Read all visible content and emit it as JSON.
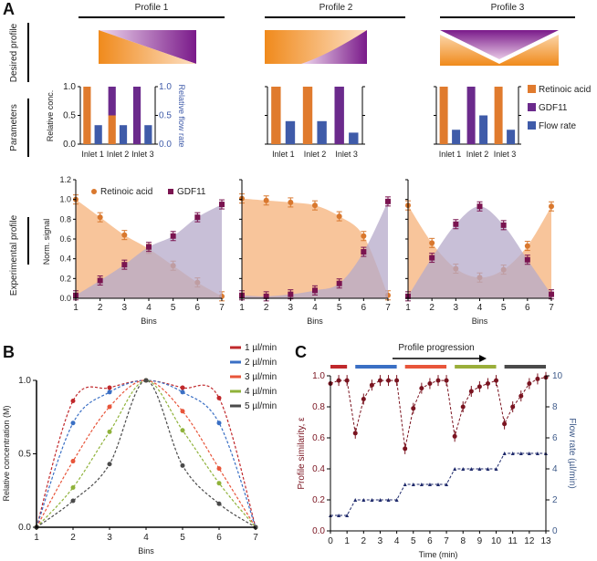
{
  "panel_labels": [
    "A",
    "B",
    "C"
  ],
  "panelA": {
    "row_labels": [
      "Desired profile",
      "Parameters",
      "Experimental profile"
    ],
    "profile_titles": [
      "Profile 1",
      "Profile 2",
      "Profile 3"
    ],
    "colors": {
      "retinoic_acid": "#e07b2e",
      "gdf11": "#6b2a8c",
      "flow_rate": "#3f5ba9",
      "ra_fill": "#f5b27a",
      "gdf_fill": "#b6a9c9",
      "ra_marker": "#d9782e",
      "gdf_marker": "#7a1450"
    }
  },
  "chart_data": [
    {
      "type": "bar",
      "name": "parameters",
      "ylabel": "Relative conc.",
      "y2label": "Relative flow rate",
      "ylim": [
        0,
        1
      ],
      "yticks": [
        "0.0",
        "0.5",
        "1.0"
      ],
      "categories": [
        "Inlet 1",
        "Inlet 2",
        "Inlet 3"
      ],
      "legend": [
        "Retinoic acid",
        "GDF11",
        "Flow rate"
      ],
      "legend_position": "right",
      "profiles": [
        {
          "retinoic_acid": [
            1,
            0.5,
            0
          ],
          "gdf11": [
            0,
            0.5,
            1
          ],
          "flow_rate": [
            0.33,
            0.33,
            0.33
          ]
        },
        {
          "retinoic_acid": [
            1,
            1,
            0
          ],
          "gdf11": [
            0,
            0,
            1
          ],
          "flow_rate": [
            0.4,
            0.4,
            0.2
          ]
        },
        {
          "retinoic_acid": [
            1,
            0,
            1
          ],
          "gdf11": [
            0,
            1,
            0
          ],
          "flow_rate": [
            0.25,
            0.5,
            0.25
          ]
        }
      ]
    },
    {
      "type": "area",
      "name": "experimental-profile",
      "xlabel": "Bins",
      "ylabel": "Norm. signal",
      "ylim": [
        0,
        1.2
      ],
      "yticks": [
        "0.0",
        "0.2",
        "0.4",
        "0.6",
        "0.8",
        "1.0",
        "1.2"
      ],
      "x": [
        1,
        2,
        3,
        4,
        5,
        6,
        7
      ],
      "legend": [
        "Retinoic acid",
        "GDF11"
      ],
      "legend_position": "top-left",
      "profiles": [
        {
          "retinoic_acid": [
            1.0,
            0.82,
            0.64,
            0.5,
            0.33,
            0.16,
            0.02
          ],
          "gdf11": [
            0.03,
            0.18,
            0.34,
            0.52,
            0.63,
            0.82,
            0.95
          ]
        },
        {
          "retinoic_acid": [
            1.01,
            0.99,
            0.97,
            0.94,
            0.83,
            0.63,
            0.03
          ],
          "gdf11": [
            0.03,
            0.02,
            0.04,
            0.08,
            0.15,
            0.47,
            0.98
          ]
        },
        {
          "retinoic_acid": [
            0.94,
            0.56,
            0.3,
            0.21,
            0.29,
            0.53,
            0.93
          ],
          "gdf11": [
            0.02,
            0.41,
            0.75,
            0.93,
            0.74,
            0.39,
            0.04
          ]
        }
      ]
    },
    {
      "type": "line",
      "name": "panel-b",
      "xlabel": "Bins",
      "ylabel": "Relative concentration (M)",
      "xlim": [
        1,
        7
      ],
      "ylim": [
        0,
        1
      ],
      "yticks": [
        "0.0",
        "0.5",
        "1.0"
      ],
      "x": [
        1,
        2,
        3,
        4,
        5,
        6,
        7
      ],
      "legend_position": "top-right",
      "series": [
        {
          "name": "1 µl/min",
          "color": "#c0282b",
          "values": [
            0,
            0.86,
            0.95,
            1,
            0.95,
            0.88,
            0
          ]
        },
        {
          "name": "2 µl/min",
          "color": "#3a6fc4",
          "values": [
            0,
            0.71,
            0.92,
            1,
            0.92,
            0.71,
            0
          ]
        },
        {
          "name": "3 µl/min",
          "color": "#e8553a",
          "values": [
            0,
            0.45,
            0.82,
            1,
            0.79,
            0.4,
            0
          ]
        },
        {
          "name": "4 µl/min",
          "color": "#8fb23a",
          "values": [
            0,
            0.27,
            0.65,
            1,
            0.66,
            0.3,
            0
          ]
        },
        {
          "name": "5 µl/min",
          "color": "#4a4a4a",
          "values": [
            0,
            0.18,
            0.43,
            1,
            0.42,
            0.16,
            0
          ]
        }
      ]
    },
    {
      "type": "line",
      "name": "panel-c",
      "title": "Profile progression",
      "xlabel": "Time (min)",
      "ylabel": "Profile similarity, ε",
      "y2label": "Flow rate (µl/min)",
      "xlim": [
        0,
        13
      ],
      "ylim": [
        0,
        1
      ],
      "y2lim": [
        0,
        10
      ],
      "xticks": [
        "0",
        "1",
        "2",
        "3",
        "4",
        "5",
        "6",
        "7",
        "8",
        "9",
        "10",
        "11",
        "12",
        "13"
      ],
      "yticks": [
        "0.0",
        "0.2",
        "0.4",
        "0.6",
        "0.8",
        "1.0"
      ],
      "y2ticks": [
        "0",
        "2",
        "4",
        "6",
        "8",
        "10"
      ],
      "x": [
        0,
        0.5,
        1,
        1.5,
        2,
        2.5,
        3,
        3.5,
        4,
        4.5,
        5,
        5.5,
        6,
        6.5,
        7,
        7.5,
        8,
        8.5,
        9,
        9.5,
        10,
        10.5,
        11,
        11.5,
        12,
        12.5,
        13
      ],
      "similarity": [
        0.95,
        0.97,
        0.97,
        0.63,
        0.85,
        0.94,
        0.97,
        0.97,
        0.97,
        0.53,
        0.79,
        0.92,
        0.95,
        0.97,
        0.97,
        0.61,
        0.8,
        0.9,
        0.93,
        0.95,
        0.97,
        0.69,
        0.8,
        0.87,
        0.95,
        0.98,
        0.99
      ],
      "flow_rate": [
        1,
        1,
        1,
        2,
        2,
        2,
        2,
        2,
        2,
        3,
        3,
        3,
        3,
        3,
        3,
        4,
        4,
        4,
        4,
        4,
        4,
        5,
        5,
        5,
        5,
        5,
        5
      ],
      "similarity_color": "#7a1420",
      "flow_color": "#1f2a6b",
      "phase_bars": [
        {
          "start": 0,
          "end": 1,
          "color": "#c0282b"
        },
        {
          "start": 1.5,
          "end": 4,
          "color": "#3a6fc4"
        },
        {
          "start": 4.5,
          "end": 7,
          "color": "#e8553a"
        },
        {
          "start": 7.5,
          "end": 10,
          "color": "#9aae3a"
        },
        {
          "start": 10.5,
          "end": 13,
          "color": "#4a4a4a"
        }
      ]
    }
  ]
}
